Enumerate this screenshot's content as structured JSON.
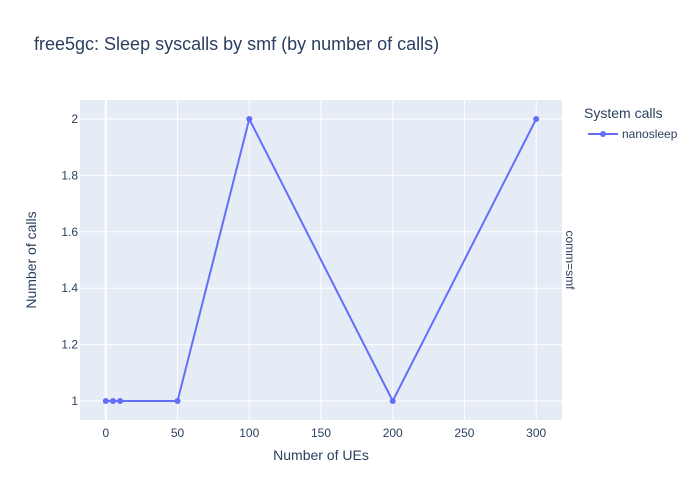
{
  "chart_data": {
    "type": "line",
    "title": "free5gc: Sleep syscalls by smf (by number of calls)",
    "xlabel": "Number of UEs",
    "ylabel": "Number of calls",
    "facet_label": "comm=smf",
    "legend_title": "System calls",
    "legend_position": "top-right",
    "grid": true,
    "xlim": [
      -18,
      318
    ],
    "ylim": [
      0.9325,
      2.0675
    ],
    "x_ticks": [
      0,
      50,
      100,
      150,
      200,
      250,
      300
    ],
    "y_ticks": [
      1,
      1.2,
      1.4,
      1.6,
      1.8,
      2
    ],
    "y_tick_labels": [
      "1",
      "1.2",
      "1.4",
      "1.6",
      "1.8",
      "2"
    ],
    "series": [
      {
        "name": "nanosleep",
        "color": "#636efa",
        "x": [
          0,
          5,
          10,
          50,
          100,
          200,
          300
        ],
        "y": [
          1,
          1,
          1,
          1,
          2,
          1,
          2
        ]
      }
    ]
  }
}
